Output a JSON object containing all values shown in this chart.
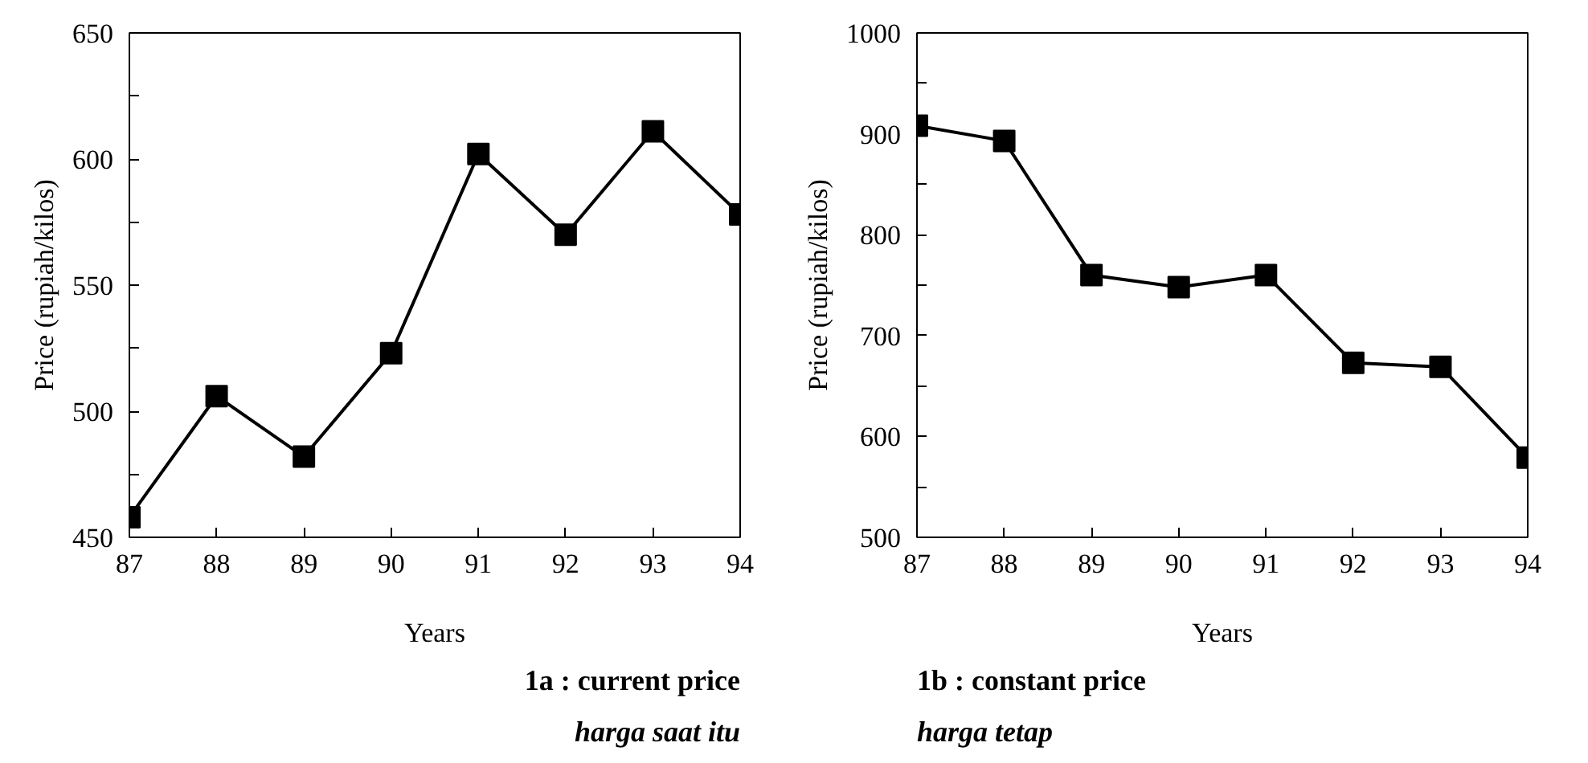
{
  "chart_data": [
    {
      "type": "line",
      "xlabel": "Years",
      "ylabel": "Price (rupiah/kilos)",
      "x": [
        87,
        88,
        89,
        90,
        91,
        92,
        93,
        94
      ],
      "series": [
        {
          "color": "#000000",
          "values": [
            458,
            506,
            482,
            523,
            602,
            570,
            611,
            578
          ]
        }
      ],
      "xlim": [
        87,
        94
      ],
      "xticks": [
        87,
        88,
        89,
        90,
        91,
        92,
        93,
        94
      ],
      "ylim": [
        450,
        650
      ],
      "yticks": [
        450,
        {
          "value": 475,
          "label": null
        },
        500,
        {
          "value": 525,
          "label": null
        },
        550,
        {
          "value": 575,
          "label": null
        },
        600,
        {
          "value": 625,
          "label": null
        },
        650
      ],
      "grid": false,
      "marker": "square",
      "line_style": "solid",
      "annotations": [
        "1a : current price",
        "harga saat itu"
      ]
    },
    {
      "type": "line",
      "xlabel": "Years",
      "ylabel": "Price (rupiah/kilos)",
      "x": [
        87,
        88,
        89,
        90,
        91,
        92,
        93,
        94
      ],
      "series": [
        {
          "color": "#000000",
          "values": [
            908,
            893,
            760,
            748,
            760,
            673,
            669,
            579
          ]
        }
      ],
      "xlim": [
        87,
        94
      ],
      "xticks": [
        87,
        88,
        89,
        90,
        91,
        92,
        93,
        94
      ],
      "ylim": [
        500,
        1000
      ],
      "yticks": [
        500,
        {
          "value": 550,
          "label": null
        },
        600,
        {
          "value": 650,
          "label": null
        },
        700,
        {
          "value": 750,
          "label": null
        },
        800,
        {
          "value": 850,
          "label": null
        },
        900,
        {
          "value": 950,
          "label": null
        },
        1000
      ],
      "grid": false,
      "marker": "square",
      "line_style": "solid",
      "annotations": [
        "1b : constant price",
        "harga tetap"
      ]
    }
  ]
}
